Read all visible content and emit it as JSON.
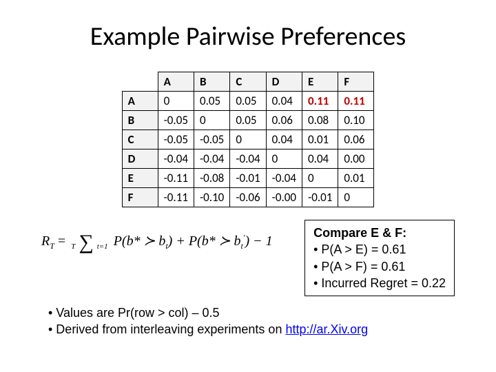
{
  "title": "Example Pairwise Preferences",
  "table": {
    "col_headers": [
      "A",
      "B",
      "C",
      "D",
      "E",
      "F"
    ],
    "row_headers": [
      "A",
      "B",
      "C",
      "D",
      "E",
      "F"
    ],
    "rows": [
      [
        "0",
        "0.05",
        "0.05",
        "0.04",
        "0.11",
        "0.11"
      ],
      [
        "-0.05",
        "0",
        "0.05",
        "0.06",
        "0.08",
        "0.10"
      ],
      [
        "-0.05",
        "-0.05",
        "0",
        "0.04",
        "0.01",
        "0.06"
      ],
      [
        "-0.04",
        "-0.04",
        "-0.04",
        "0",
        "0.04",
        "0.00"
      ],
      [
        "-0.11",
        "-0.08",
        "-0.01",
        "-0.04",
        "0",
        "0.01"
      ],
      [
        "-0.11",
        "-0.10",
        "-0.06",
        "-0.00",
        "-0.01",
        "0"
      ]
    ],
    "highlight": [
      [
        0,
        4
      ],
      [
        0,
        5
      ]
    ],
    "header_bg": "#f2f2f2",
    "border_color": "#000000",
    "highlight_color": "#c00000",
    "cell_fontsize": 17
  },
  "formula": {
    "lhs_var": "R",
    "lhs_sub": "T",
    "sum_top": "T",
    "sum_bot": "t=1",
    "p1": "P(b* ≻ b",
    "p1_sub": "t",
    "p1_close": ")",
    "plus": " + ",
    "p2": "P(b* ≻ b",
    "p2_sub": "t",
    "p2_sup": "′",
    "p2_close": ") − 1"
  },
  "compare": {
    "header": "Compare E & F:",
    "l1": "• P(A > E) = 0.61",
    "l2": "• P(A > F) = 0.61",
    "l3": "• Incurred Regret = 0.22"
  },
  "notes": {
    "l1": "• Values are Pr(row > col) – 0.5",
    "l2_pre": "• Derived from interleaving experiments on ",
    "l2_link": "http://ar.Xiv.org"
  }
}
